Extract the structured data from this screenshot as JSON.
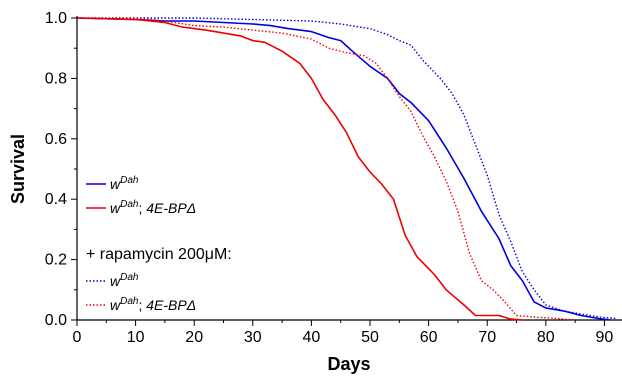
{
  "chart_data": {
    "type": "line",
    "xlabel": "Days",
    "ylabel": "Survival",
    "xlim": [
      0,
      93
    ],
    "ylim": [
      0,
      1.0
    ],
    "x_ticks": [
      "0",
      "10",
      "20",
      "30",
      "40",
      "50",
      "60",
      "70",
      "80",
      "90"
    ],
    "y_ticks": [
      "0.0",
      "0.2",
      "0.4",
      "0.6",
      "0.8",
      "1.0"
    ],
    "grid": false,
    "legend_placement": "left",
    "legend_group_label": "+ rapamycin 200μM:",
    "series": [
      {
        "name_base": "w",
        "name_sup": "Dah",
        "name_suffix": "",
        "color": "#0000dd",
        "style": "solid",
        "points": [
          [
            0,
            1.0
          ],
          [
            10,
            0.995
          ],
          [
            15,
            0.99
          ],
          [
            20,
            0.99
          ],
          [
            25,
            0.985
          ],
          [
            30,
            0.98
          ],
          [
            33,
            0.975
          ],
          [
            36,
            0.965
          ],
          [
            40,
            0.955
          ],
          [
            43,
            0.935
          ],
          [
            45,
            0.925
          ],
          [
            47,
            0.89
          ],
          [
            50,
            0.84
          ],
          [
            53,
            0.8
          ],
          [
            55,
            0.75
          ],
          [
            57,
            0.72
          ],
          [
            60,
            0.66
          ],
          [
            63,
            0.57
          ],
          [
            66,
            0.47
          ],
          [
            69,
            0.36
          ],
          [
            72,
            0.27
          ],
          [
            74,
            0.18
          ],
          [
            76,
            0.13
          ],
          [
            78,
            0.06
          ],
          [
            80,
            0.04
          ],
          [
            83,
            0.03
          ],
          [
            86,
            0.015
          ],
          [
            89,
            0.005
          ],
          [
            91,
            0.0
          ]
        ]
      },
      {
        "name_base": "w",
        "name_sup": "Dah",
        "name_suffix": "; 4E-BPΔ",
        "color": "#ee0000",
        "style": "solid",
        "points": [
          [
            0,
            1.0
          ],
          [
            10,
            0.995
          ],
          [
            15,
            0.985
          ],
          [
            18,
            0.97
          ],
          [
            22,
            0.96
          ],
          [
            25,
            0.95
          ],
          [
            28,
            0.94
          ],
          [
            30,
            0.925
          ],
          [
            32,
            0.92
          ],
          [
            35,
            0.89
          ],
          [
            38,
            0.85
          ],
          [
            40,
            0.8
          ],
          [
            42,
            0.73
          ],
          [
            44,
            0.68
          ],
          [
            46,
            0.62
          ],
          [
            48,
            0.54
          ],
          [
            50,
            0.49
          ],
          [
            52,
            0.45
          ],
          [
            54,
            0.4
          ],
          [
            56,
            0.28
          ],
          [
            58,
            0.21
          ],
          [
            61,
            0.15
          ],
          [
            63,
            0.1
          ],
          [
            66,
            0.05
          ],
          [
            68,
            0.015
          ],
          [
            72,
            0.015
          ],
          [
            74,
            0.003
          ],
          [
            76,
            0.0
          ]
        ]
      },
      {
        "name_base": "w",
        "name_sup": "Dah",
        "name_suffix": "",
        "color": "#0000dd",
        "style": "dotted",
        "group": "rapamycin",
        "points": [
          [
            0,
            1.0
          ],
          [
            10,
            1.0
          ],
          [
            20,
            1.0
          ],
          [
            30,
            0.995
          ],
          [
            40,
            0.99
          ],
          [
            45,
            0.98
          ],
          [
            50,
            0.965
          ],
          [
            53,
            0.945
          ],
          [
            55,
            0.925
          ],
          [
            57,
            0.91
          ],
          [
            59,
            0.86
          ],
          [
            62,
            0.8
          ],
          [
            64,
            0.75
          ],
          [
            66,
            0.68
          ],
          [
            68,
            0.58
          ],
          [
            70,
            0.48
          ],
          [
            72,
            0.35
          ],
          [
            74,
            0.26
          ],
          [
            76,
            0.16
          ],
          [
            78,
            0.1
          ],
          [
            80,
            0.05
          ],
          [
            83,
            0.03
          ],
          [
            86,
            0.02
          ],
          [
            89,
            0.01
          ],
          [
            92,
            0.005
          ]
        ]
      },
      {
        "name_base": "w",
        "name_sup": "Dah",
        "name_suffix": "; 4E-BPΔ",
        "color": "#ee0000",
        "style": "dotted",
        "group": "rapamycin",
        "points": [
          [
            0,
            1.0
          ],
          [
            10,
            1.0
          ],
          [
            15,
            0.99
          ],
          [
            20,
            0.975
          ],
          [
            25,
            0.97
          ],
          [
            30,
            0.96
          ],
          [
            35,
            0.95
          ],
          [
            40,
            0.93
          ],
          [
            43,
            0.9
          ],
          [
            46,
            0.885
          ],
          [
            49,
            0.875
          ],
          [
            51,
            0.85
          ],
          [
            53,
            0.8
          ],
          [
            55,
            0.74
          ],
          [
            57,
            0.69
          ],
          [
            59,
            0.61
          ],
          [
            61,
            0.54
          ],
          [
            63,
            0.46
          ],
          [
            65,
            0.36
          ],
          [
            67,
            0.22
          ],
          [
            69,
            0.13
          ],
          [
            71,
            0.1
          ],
          [
            73,
            0.06
          ],
          [
            75,
            0.015
          ],
          [
            78,
            0.01
          ],
          [
            82,
            0.005
          ],
          [
            85,
            0.0
          ]
        ]
      }
    ]
  }
}
